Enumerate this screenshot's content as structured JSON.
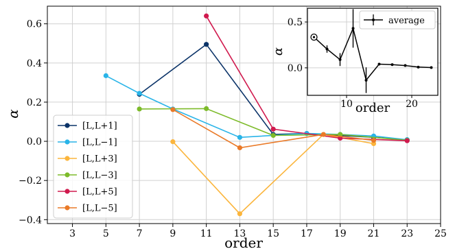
{
  "chart_data": [
    {
      "type": "line",
      "xlabel": "order",
      "ylabel": "α",
      "xlim": [
        1.5,
        25
      ],
      "ylim": [
        -0.42,
        0.69
      ],
      "xticks": [
        3,
        5,
        7,
        9,
        11,
        13,
        15,
        17,
        19,
        21,
        23,
        25
      ],
      "yticks": [
        -0.4,
        -0.2,
        0.0,
        0.2,
        0.4,
        0.6
      ],
      "ytick_labels": [
        "−0.4",
        "−0.2",
        "0.0",
        "0.2",
        "0.4",
        "0.6"
      ],
      "grid": true,
      "legend_position": "lower-left",
      "series": [
        {
          "name": "[L,L+1]",
          "color": "#0b3368",
          "points": [
            [
              7,
              0.24
            ],
            [
              11,
              0.495
            ],
            [
              15,
              0.035
            ],
            [
              17,
              0.04
            ],
            [
              19,
              0.03
            ],
            [
              21,
              0.02
            ],
            [
              23,
              0.008
            ]
          ]
        },
        {
          "name": "[L,L−1]",
          "color": "#29b4e8",
          "points": [
            [
              5,
              0.335
            ],
            [
              7,
              0.245
            ],
            [
              9,
              0.165
            ],
            [
              13,
              0.02
            ],
            [
              17,
              0.04
            ],
            [
              19,
              0.035
            ],
            [
              21,
              0.027
            ],
            [
              23,
              0.008
            ]
          ]
        },
        {
          "name": "[L,L+3]",
          "color": "#fbb53c",
          "points": [
            [
              9,
              -0.002
            ],
            [
              13,
              -0.37
            ],
            [
              18,
              0.035
            ],
            [
              21,
              -0.012
            ]
          ]
        },
        {
          "name": "[L,L−3]",
          "color": "#7dbb2a",
          "points": [
            [
              7,
              0.165
            ],
            [
              11,
              0.167
            ],
            [
              15,
              0.03
            ],
            [
              19,
              0.035
            ],
            [
              23,
              0.005
            ]
          ]
        },
        {
          "name": "[L,L+5]",
          "color": "#d01a4e",
          "points": [
            [
              11,
              0.64
            ],
            [
              15,
              0.062
            ],
            [
              19,
              0.016
            ],
            [
              23,
              0.003
            ]
          ]
        },
        {
          "name": "[L,L−5]",
          "color": "#ea7a28",
          "points": [
            [
              9,
              0.162
            ],
            [
              13,
              -0.033
            ],
            [
              18,
              0.035
            ],
            [
              21,
              0.005
            ]
          ]
        }
      ]
    },
    {
      "type": "line",
      "xlabel": "order",
      "ylabel": "α",
      "xlim": [
        4,
        24
      ],
      "ylim": [
        -0.3,
        0.65
      ],
      "xticks": [
        10,
        20
      ],
      "yticks": [
        0.0,
        0.5
      ],
      "ytick_labels": [
        "0.0",
        "0.5"
      ],
      "grid": true,
      "legend_position": "upper-right",
      "series": [
        {
          "name": "average",
          "color": "#000000",
          "points": [
            [
              5,
              0.335
            ],
            [
              7,
              0.205
            ],
            [
              9,
              0.09
            ],
            [
              11,
              0.43
            ],
            [
              13,
              -0.135
            ],
            [
              15,
              0.04
            ],
            [
              17,
              0.035
            ],
            [
              19,
              0.025
            ],
            [
              21,
              0.008
            ],
            [
              23,
              0.003
            ]
          ],
          "errors": [
            0,
            0.04,
            0.07,
            0.21,
            0.14,
            0,
            0,
            0,
            0,
            0
          ],
          "first_marker": "open-circle"
        }
      ]
    }
  ]
}
